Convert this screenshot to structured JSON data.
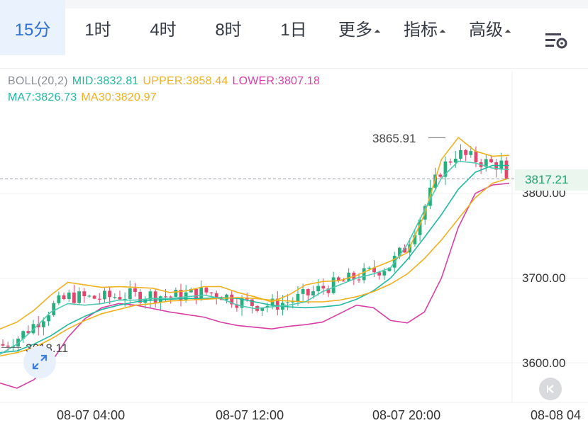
{
  "tabs": [
    {
      "label": "15分",
      "active": true
    },
    {
      "label": "1时",
      "active": false
    },
    {
      "label": "4时",
      "active": false
    },
    {
      "label": "8时",
      "active": false
    },
    {
      "label": "1日",
      "active": false
    },
    {
      "label": "更多",
      "active": false
    },
    {
      "label": "指标",
      "active": false
    },
    {
      "label": "高级",
      "active": false
    }
  ],
  "settings_icon": "chart-settings-icon",
  "indicators": {
    "boll_label": "BOLL(20,2)",
    "mid": "MID:3832.81",
    "upper": "UPPER:3858.44",
    "lower": "LOWER:3807.18",
    "ma7": "MA7:3826.73",
    "ma30": "MA30:3820.97"
  },
  "colors": {
    "accent": "#2f6fd6",
    "up": "#26b07d",
    "down": "#e2466a",
    "mid": "#20b8a0",
    "upper": "#f0b020",
    "lower": "#d83ea6",
    "ma7": "#20b8a0",
    "ma30": "#f0b020"
  },
  "price_axis": [
    "3800.00",
    "3700.00",
    "3600.00"
  ],
  "current_price": "3817.21",
  "high_annotation": "3865.91",
  "low_annotation": "3618.11",
  "time_axis": [
    "08-07 04:00",
    "08-07 12:00",
    "08-07 20:00",
    "08-08 04"
  ],
  "chart_data": {
    "type": "candlestick",
    "ylim": [
      3560,
      3880
    ],
    "x_span": [
      "08-07 00:00",
      "08-08 01:45"
    ],
    "mid_series": [
      3612,
      3614,
      3622,
      3632,
      3645,
      3655,
      3663,
      3668,
      3672,
      3674,
      3675,
      3676,
      3676,
      3677,
      3676,
      3672,
      3668,
      3666,
      3665,
      3666,
      3668,
      3675,
      3685,
      3700,
      3722,
      3748,
      3775,
      3805,
      3825,
      3833,
      3833
    ],
    "upper_series": [
      3640,
      3648,
      3662,
      3680,
      3695,
      3692,
      3689,
      3690,
      3689,
      3688,
      3683,
      3685,
      3690,
      3690,
      3683,
      3678,
      3672,
      3680,
      3692,
      3696,
      3697,
      3703,
      3712,
      3720,
      3730,
      3775,
      3840,
      3866,
      3850,
      3844,
      3845
    ],
    "lower_series": [
      3576,
      3570,
      3580,
      3600,
      3630,
      3652,
      3665,
      3670,
      3668,
      3664,
      3660,
      3657,
      3654,
      3648,
      3644,
      3642,
      3640,
      3643,
      3645,
      3648,
      3658,
      3668,
      3665,
      3650,
      3647,
      3660,
      3700,
      3760,
      3800,
      3810,
      3812
    ],
    "ma30_series": [
      3608,
      3612,
      3618,
      3628,
      3640,
      3650,
      3658,
      3663,
      3668,
      3670,
      3673,
      3674,
      3675,
      3676,
      3677,
      3676,
      3674,
      3673,
      3672,
      3672,
      3674,
      3678,
      3684,
      3693,
      3705,
      3723,
      3745,
      3770,
      3795,
      3812,
      3818
    ],
    "ma7_series": [
      3610,
      3622,
      3640,
      3660,
      3670,
      3668,
      3670,
      3674,
      3674,
      3676,
      3676,
      3678,
      3680,
      3676,
      3668,
      3664,
      3666,
      3668,
      3672,
      3684,
      3692,
      3700,
      3705,
      3712,
      3740,
      3780,
      3818,
      3838,
      3836,
      3830,
      3828
    ]
  }
}
